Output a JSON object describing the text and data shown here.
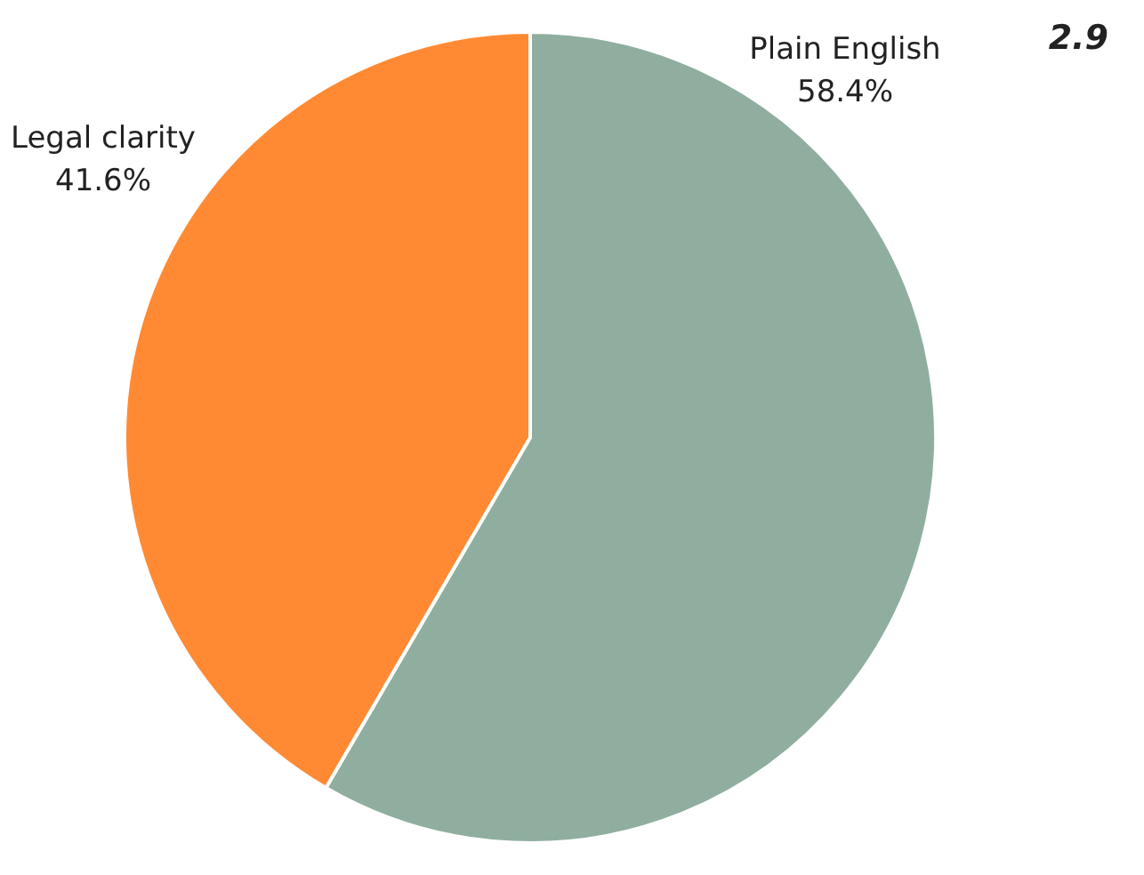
{
  "chart_data": {
    "type": "pie",
    "categories": [
      "Plain English",
      "Legal clarity"
    ],
    "values": [
      58.4,
      41.6
    ],
    "colors": [
      "#8fae9f",
      "#ff8a33"
    ],
    "value_labels": [
      "58.4%",
      "41.6%"
    ],
    "annotations": [
      "2.9"
    ],
    "legend": false
  }
}
